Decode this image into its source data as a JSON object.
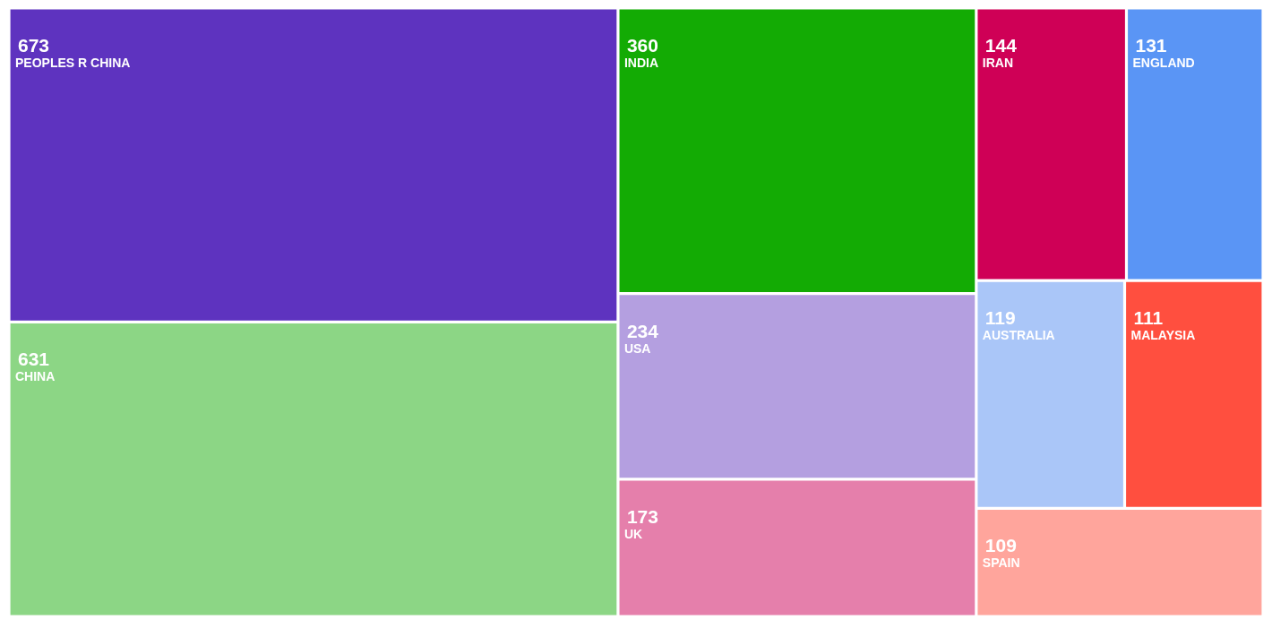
{
  "chart_data": {
    "type": "other",
    "categories": [
      "PEOPLES R CHINA",
      "CHINA",
      "INDIA",
      "USA",
      "UK",
      "IRAN",
      "ENGLAND",
      "AUSTRALIA",
      "MALAYSIA",
      "SPAIN"
    ],
    "values": [
      673,
      631,
      360,
      234,
      173,
      144,
      131,
      119,
      111,
      109
    ],
    "colors": [
      "#5e33bf",
      "#8cd685",
      "#13ab04",
      "#b49fe0",
      "#e57fab",
      "#cf0056",
      "#5a95f5",
      "#aac6f8",
      "#ff4f3f",
      "#ffa59c"
    ],
    "data_labels": true
  }
}
